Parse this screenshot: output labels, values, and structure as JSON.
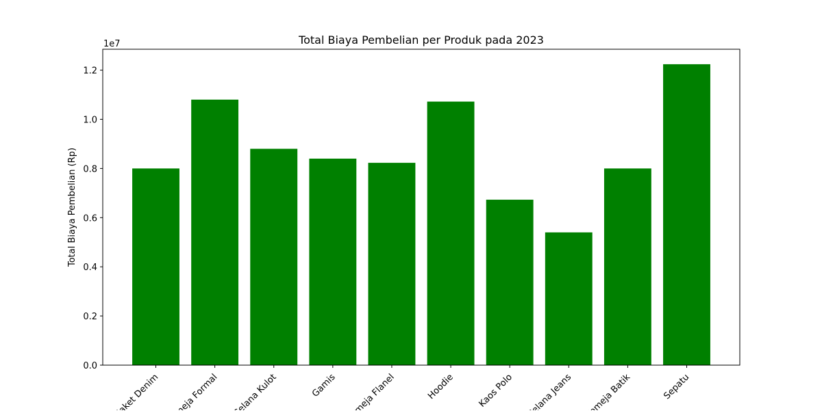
{
  "chart_data": {
    "type": "bar",
    "title": "Total Biaya Pembelian per Produk pada 2023",
    "xlabel": "",
    "ylabel": "Total Biaya Pembelian (Rp)",
    "offset_label": "1e7",
    "categories": [
      "Jaket Denim",
      "Kemeja Formal",
      "Celana Kulot",
      "Gamis",
      "Kemeja Flanel",
      "Hoodie",
      "Kaos Polo",
      "Celana Jeans",
      "Kemeja Batik",
      "Sepatu"
    ],
    "values": [
      8000000,
      10800000,
      8800000,
      8400000,
      8230000,
      10720000,
      6730000,
      5400000,
      8000000,
      12240000
    ],
    "ylim": [
      0,
      12850000
    ],
    "yticks": [
      0,
      2000000,
      4000000,
      6000000,
      8000000,
      10000000,
      12000000
    ],
    "ytick_labels": [
      "0.0",
      "0.2",
      "0.4",
      "0.6",
      "0.8",
      "1.0",
      "1.2"
    ],
    "bar_color": "#008000",
    "grid": false,
    "legend": "none"
  }
}
